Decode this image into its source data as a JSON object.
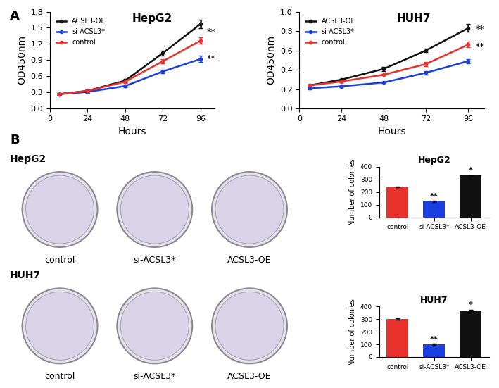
{
  "chart_data": [
    {
      "type": "line",
      "title": "HepG2",
      "x_label": "Hours",
      "y_label": "OD450nm",
      "x": [
        6,
        24,
        48,
        72,
        96
      ],
      "xlim": [
        0,
        105
      ],
      "xticks": [
        0,
        24,
        48,
        72,
        96
      ],
      "ylim": [
        0,
        1.8
      ],
      "yticks": [
        {
          "value": 0,
          "label": "0.0"
        },
        0.3,
        0.6,
        0.9,
        1.2,
        1.5,
        1.8
      ],
      "legend": "upper left",
      "marker": "o",
      "series": [
        {
          "name": "ACSL3-OE",
          "color": "#111111",
          "values": [
            0.27,
            0.33,
            0.52,
            1.03,
            1.57
          ],
          "errors": [
            0.02,
            0.02,
            0.03,
            0.04,
            0.08
          ]
        },
        {
          "name": "si-ACSL3*",
          "color": "#1b3ee0",
          "values": [
            0.27,
            0.31,
            0.42,
            0.69,
            0.92
          ],
          "errors": [
            0.02,
            0.02,
            0.02,
            0.03,
            0.06
          ]
        },
        {
          "name": "control",
          "color": "#e8302c",
          "values": [
            0.27,
            0.33,
            0.5,
            0.88,
            1.26
          ],
          "errors": [
            0.02,
            0.02,
            0.03,
            0.04,
            0.06
          ]
        }
      ],
      "annotations": [
        {
          "text": "**",
          "x": 100,
          "y": 1.42
        },
        {
          "text": "**",
          "x": 100,
          "y": 0.92
        }
      ]
    },
    {
      "type": "line",
      "title": "HUH7",
      "x_label": "Hours",
      "y_label": "OD450nm",
      "x": [
        6,
        24,
        48,
        72,
        96
      ],
      "xlim": [
        0,
        105
      ],
      "xticks": [
        0,
        24,
        48,
        72,
        96
      ],
      "ylim": [
        0,
        1
      ],
      "yticks": [
        {
          "value": 0,
          "label": "0.0"
        },
        0.2,
        0.4,
        0.6,
        0.8,
        {
          "value": 1,
          "label": "1.0"
        }
      ],
      "legend": "upper left",
      "marker": "o",
      "series": [
        {
          "name": "ACSL3-OE",
          "color": "#111111",
          "values": [
            0.24,
            0.3,
            0.41,
            0.6,
            0.83
          ],
          "errors": [
            0.01,
            0.01,
            0.02,
            0.02,
            0.04
          ]
        },
        {
          "name": "si-ACSL3*",
          "color": "#1b3ee0",
          "values": [
            0.21,
            0.23,
            0.27,
            0.37,
            0.49
          ],
          "errors": [
            0.01,
            0.01,
            0.01,
            0.02,
            0.02
          ]
        },
        {
          "name": "control",
          "color": "#e8302c",
          "values": [
            0.24,
            0.28,
            0.35,
            0.46,
            0.66
          ],
          "errors": [
            0.01,
            0.01,
            0.01,
            0.02,
            0.03
          ]
        }
      ],
      "annotations": [
        {
          "text": "**",
          "x": 100,
          "y": 0.82
        },
        {
          "text": "**",
          "x": 100,
          "y": 0.64
        }
      ]
    },
    {
      "type": "bar",
      "title": "HepG2",
      "y_label": "Number of colonies",
      "categories": [
        "control",
        "si-ACSL3*",
        "ACSL3-OE"
      ],
      "values": [
        240,
        125,
        330
      ],
      "errors": [
        5,
        4,
        5
      ],
      "colors": [
        "#e8302c",
        "#1b3ee0",
        "#111111"
      ],
      "ylim": [
        0,
        400
      ],
      "yticks": [
        0,
        100,
        200,
        300,
        400
      ],
      "annotations": [
        {
          "text": "**",
          "category": "si-ACSL3*"
        },
        {
          "text": "*",
          "category": "ACSL3-OE"
        }
      ]
    },
    {
      "type": "bar",
      "title": "HUH7",
      "y_label": "Number of colonies",
      "categories": [
        "control",
        "si-ACSL3*",
        "ACSL3-OE"
      ],
      "values": [
        300,
        100,
        370
      ],
      "errors": [
        5,
        4,
        5
      ],
      "colors": [
        "#e8302c",
        "#1b3ee0",
        "#111111"
      ],
      "ylim": [
        0,
        400
      ],
      "yticks": [
        0,
        100,
        200,
        300,
        400
      ],
      "annotations": [
        {
          "text": "**",
          "category": "si-ACSL3*"
        },
        {
          "text": "*",
          "category": "ACSL3-OE"
        }
      ]
    }
  ],
  "panel_labels": [
    "A",
    "B"
  ],
  "plates": {
    "rows": [
      "HepG2",
      "HUH7"
    ],
    "columns": [
      "control",
      "si-ACSL3*",
      "ACSL3-OE"
    ]
  }
}
